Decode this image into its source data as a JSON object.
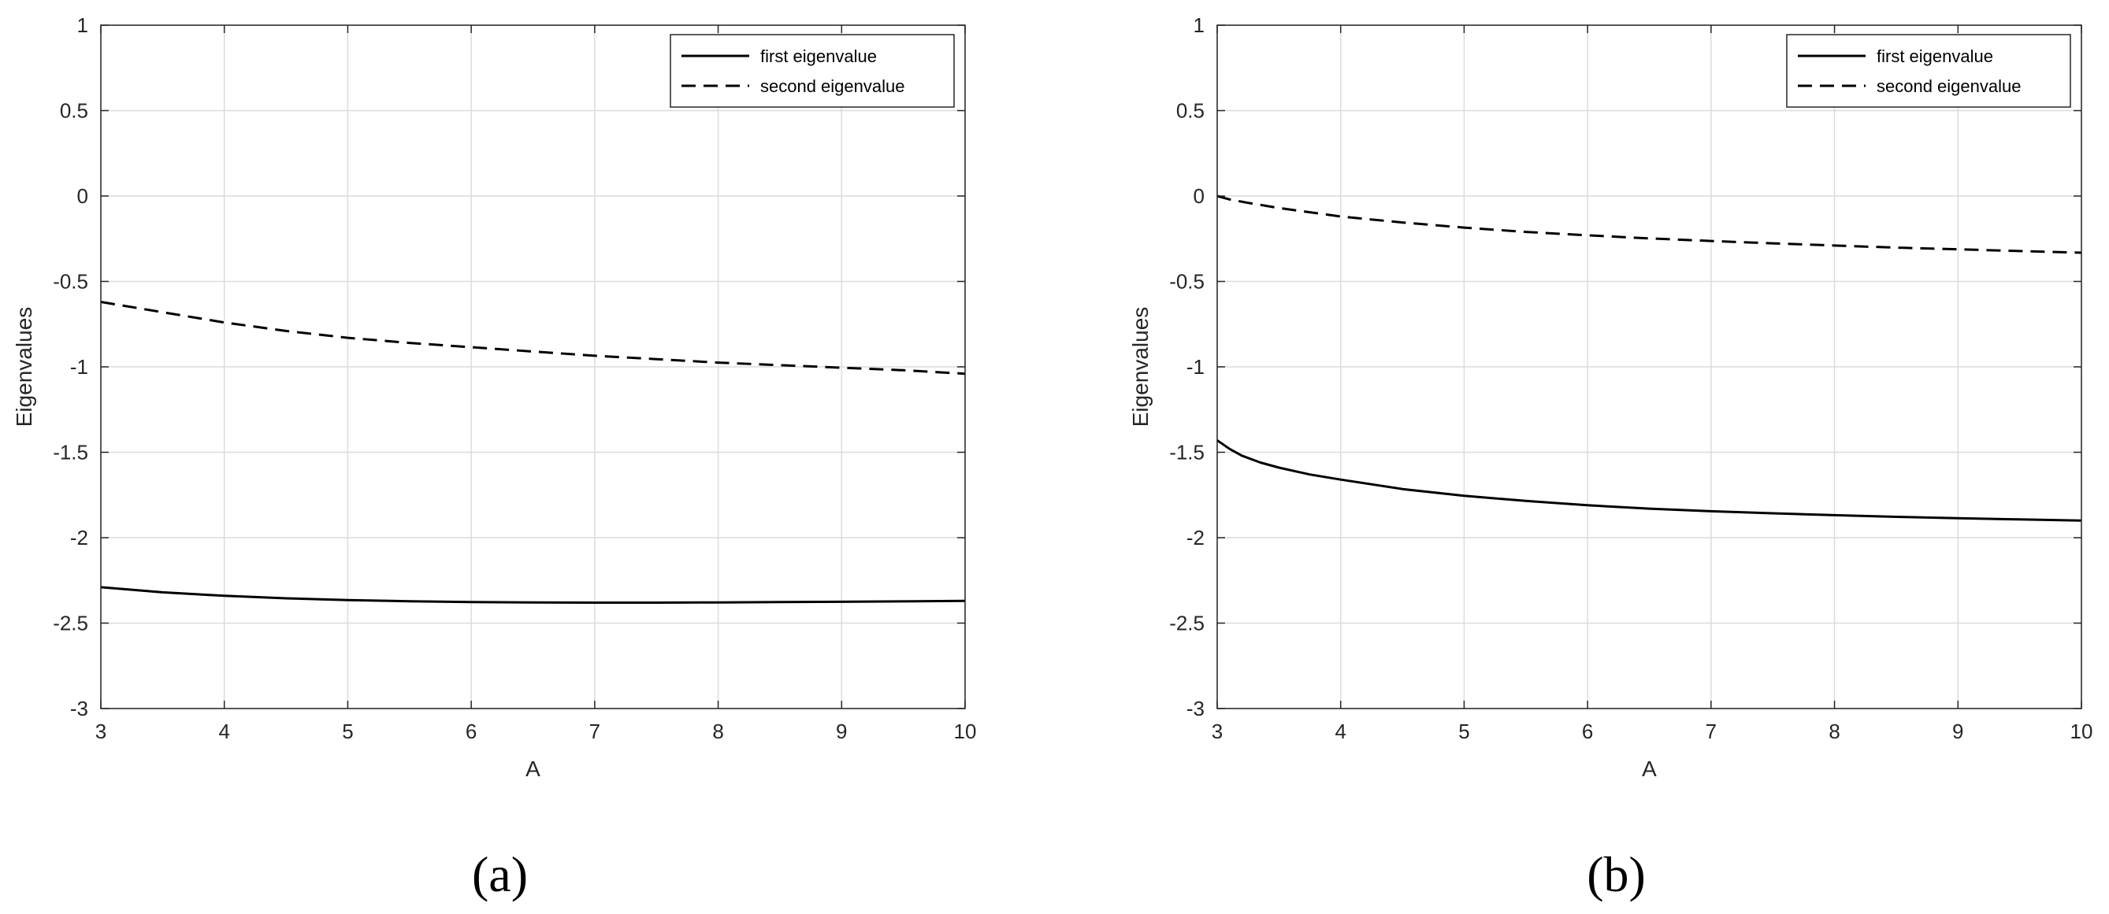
{
  "chart_data": [
    {
      "type": "line",
      "panel_label": "(a)",
      "xlabel": "A",
      "ylabel": "Eigenvalues",
      "xlim": [
        3,
        10
      ],
      "ylim": [
        -3,
        1
      ],
      "xticks": [
        3,
        4,
        5,
        6,
        7,
        8,
        9,
        10
      ],
      "yticks": [
        -3,
        -2.5,
        -2,
        -1.5,
        -1,
        -0.5,
        0,
        0.5,
        1
      ],
      "grid": true,
      "legend_position": "top-right",
      "series": [
        {
          "name": "first eigenvalue",
          "style": "solid",
          "x": [
            3,
            3.5,
            4,
            4.5,
            5,
            5.5,
            6,
            6.5,
            7,
            7.5,
            8,
            8.5,
            9,
            9.5,
            10
          ],
          "y": [
            -2.29,
            -2.32,
            -2.34,
            -2.355,
            -2.365,
            -2.372,
            -2.377,
            -2.379,
            -2.38,
            -2.38,
            -2.379,
            -2.377,
            -2.375,
            -2.373,
            -2.37
          ]
        },
        {
          "name": "second eigenvalue",
          "style": "dashed",
          "x": [
            3,
            3.5,
            4,
            4.5,
            5,
            5.5,
            6,
            6.5,
            7,
            7.5,
            8,
            8.5,
            9,
            9.5,
            10
          ],
          "y": [
            -0.62,
            -0.68,
            -0.74,
            -0.79,
            -0.83,
            -0.86,
            -0.885,
            -0.91,
            -0.935,
            -0.955,
            -0.975,
            -0.99,
            -1.005,
            -1.02,
            -1.04
          ]
        }
      ]
    },
    {
      "type": "line",
      "panel_label": "(b)",
      "xlabel": "A",
      "ylabel": "Eigenvalues",
      "xlim": [
        3,
        10
      ],
      "ylim": [
        -3,
        1
      ],
      "xticks": [
        3,
        4,
        5,
        6,
        7,
        8,
        9,
        10
      ],
      "yticks": [
        -3,
        -2.5,
        -2,
        -1.5,
        -1,
        -0.5,
        0,
        0.5,
        1
      ],
      "grid": true,
      "legend_position": "top-right",
      "series": [
        {
          "name": "first eigenvalue",
          "style": "solid",
          "x": [
            3,
            3.1,
            3.2,
            3.35,
            3.5,
            3.75,
            4,
            4.5,
            5,
            5.5,
            6,
            6.5,
            7,
            7.5,
            8,
            8.5,
            9,
            9.5,
            10
          ],
          "y": [
            -1.43,
            -1.48,
            -1.52,
            -1.56,
            -1.59,
            -1.63,
            -1.66,
            -1.715,
            -1.755,
            -1.785,
            -1.81,
            -1.83,
            -1.845,
            -1.857,
            -1.868,
            -1.878,
            -1.886,
            -1.893,
            -1.9
          ]
        },
        {
          "name": "second eigenvalue",
          "style": "dashed",
          "x": [
            3,
            3.1,
            3.25,
            3.5,
            4,
            4.5,
            5,
            5.5,
            6,
            6.5,
            7,
            7.5,
            8,
            8.5,
            9,
            9.5,
            10
          ],
          "y": [
            0,
            -0.02,
            -0.04,
            -0.07,
            -0.12,
            -0.155,
            -0.185,
            -0.21,
            -0.23,
            -0.248,
            -0.263,
            -0.277,
            -0.29,
            -0.302,
            -0.312,
            -0.322,
            -0.332
          ]
        }
      ]
    }
  ]
}
